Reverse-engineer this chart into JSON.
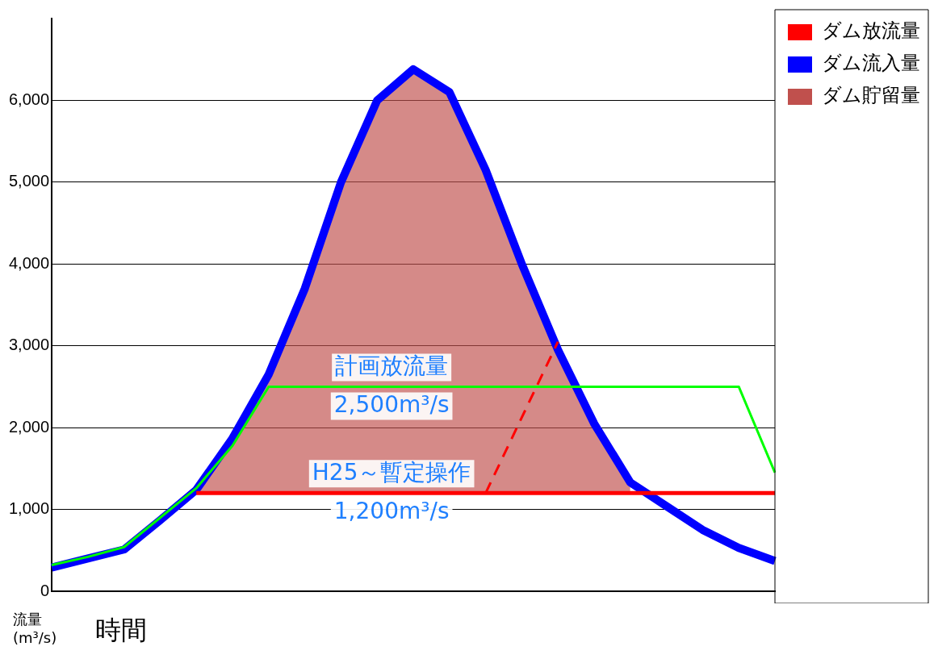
{
  "chart_data": {
    "type": "line",
    "xlabel": "時間",
    "ylabel": "流量\n(m³/s)",
    "ylim": [
      0,
      7000
    ],
    "categories": [
      null,
      null,
      null,
      null,
      null,
      null,
      null,
      null,
      null,
      null,
      null,
      null,
      null,
      null,
      null,
      null,
      null,
      null,
      null,
      null,
      null
    ],
    "yticks": [
      {
        "value": 0,
        "label": "0"
      },
      {
        "value": 1000,
        "label": "1,000"
      },
      {
        "value": 2000,
        "label": "2,000"
      },
      {
        "value": 3000,
        "label": "3,000"
      },
      {
        "value": 4000,
        "label": "4,000"
      },
      {
        "value": 5000,
        "label": "5,000"
      },
      {
        "value": 6000,
        "label": "6,000"
      }
    ],
    "tick_labels": "y",
    "grid": "y",
    "legend": "top right",
    "marker": "none",
    "series": [
      {
        "name": "ダム放流量",
        "color": "#ff0000",
        "values": [
          null,
          null,
          null,
          null,
          1200,
          1200,
          1200,
          1200,
          1200,
          1200,
          1200,
          1200,
          1200,
          1200,
          1200,
          1200,
          1200,
          1200,
          1200,
          1200,
          1200
        ]
      },
      {
        "name": "ダム流入量",
        "color": "#0000ff",
        "values": [
          290,
          400,
          510,
          870,
          1240,
          1870,
          2650,
          3700,
          5000,
          6000,
          6380,
          6100,
          5150,
          4000,
          2950,
          2050,
          1330,
          1040,
          750,
          530,
          370
        ]
      },
      {
        "name": "ダム貯留量",
        "type": "area",
        "color": "#c0504d",
        "values": [
          null,
          null,
          null,
          null,
          1240,
          1870,
          2650,
          3700,
          5000,
          6000,
          6380,
          6100,
          5150,
          4000,
          2950,
          2050,
          1330,
          null,
          null,
          null,
          null
        ]
      },
      {
        "color": "#00ff00",
        "values": [
          320,
          420,
          540,
          900,
          1260,
          1780,
          2500,
          2500,
          2500,
          2500,
          2500,
          2500,
          2500,
          2500,
          2500,
          2500,
          2500,
          2500,
          2500,
          2500,
          1450
        ]
      },
      {
        "color": "#ff0000",
        "line_style": "dashed",
        "values": [
          null,
          null,
          null,
          null,
          null,
          null,
          null,
          null,
          null,
          null,
          null,
          null,
          1200,
          null,
          3050,
          null,
          null,
          null,
          null,
          null,
          null
        ]
      }
    ],
    "annotations": [
      {
        "text": "計画放流量\n2,500m³/s",
        "y": 2500
      },
      {
        "text": "H25～暫定操作\n1,200m³/s",
        "y": 1200
      }
    ]
  }
}
